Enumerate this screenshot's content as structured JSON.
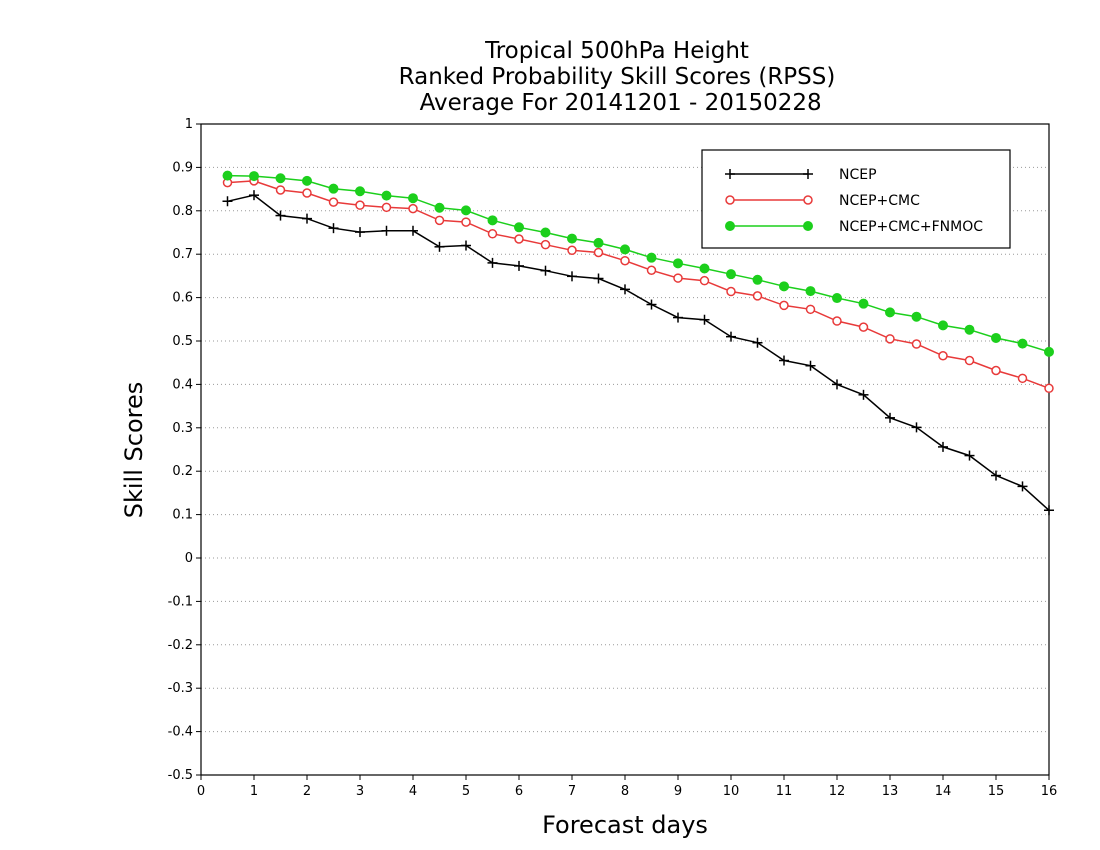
{
  "chart_data": {
    "type": "line",
    "title_lines": [
      "Tropical 500hPa Height",
      "Ranked Probability Skill Scores (RPSS)",
      " Average For 20141201 - 20150228"
    ],
    "xlabel": "Forecast days",
    "ylabel": "Skill Scores",
    "xlim": [
      0,
      16
    ],
    "ylim": [
      -0.5,
      1
    ],
    "x_ticks": [
      "0",
      "1",
      "2",
      "3",
      "4",
      "5",
      "6",
      "7",
      "8",
      "9",
      "10",
      "11",
      "12",
      "13",
      "14",
      "15",
      "16"
    ],
    "y_ticks": [
      "1",
      "0.9",
      "0.8",
      "0.7",
      "0.6",
      "0.5",
      "0.4",
      "0.3",
      "0.2",
      "0.1",
      "0",
      "-0.1",
      "-0.2",
      "-0.3",
      "-0.4",
      "-0.5"
    ],
    "grid": "horizontal dotted",
    "legend_position": "top-right",
    "x": [
      0.5,
      1,
      1.5,
      2,
      2.5,
      3,
      3.5,
      4,
      4.5,
      5,
      5.5,
      6,
      6.5,
      7,
      7.5,
      8,
      8.5,
      9,
      9.5,
      10,
      10.5,
      11,
      11.5,
      12,
      12.5,
      13,
      13.5,
      14,
      14.5,
      15,
      15.5,
      16
    ],
    "series": [
      {
        "name": "NCEP",
        "color": "#000000",
        "marker": "plus",
        "values": [
          0.822,
          0.836,
          0.789,
          0.782,
          0.76,
          0.751,
          0.754,
          0.754,
          0.717,
          0.72,
          0.68,
          0.673,
          0.662,
          0.649,
          0.644,
          0.619,
          0.584,
          0.554,
          0.549,
          0.51,
          0.496,
          0.455,
          0.443,
          0.4,
          0.376,
          0.323,
          0.301,
          0.256,
          0.236,
          0.19,
          0.165,
          0.11
        ]
      },
      {
        "name": "NCEP+CMC",
        "color": "#e83a3a",
        "marker": "open-circle",
        "values": [
          0.865,
          0.869,
          0.848,
          0.841,
          0.82,
          0.813,
          0.808,
          0.805,
          0.778,
          0.774,
          0.747,
          0.735,
          0.722,
          0.709,
          0.704,
          0.685,
          0.663,
          0.645,
          0.639,
          0.614,
          0.604,
          0.582,
          0.573,
          0.546,
          0.532,
          0.505,
          0.493,
          0.466,
          0.455,
          0.432,
          0.414,
          0.391
        ]
      },
      {
        "name": "NCEP+CMC+FNMOC",
        "color": "#1ccf1c",
        "marker": "filled-circle",
        "values": [
          0.881,
          0.88,
          0.875,
          0.869,
          0.851,
          0.845,
          0.835,
          0.829,
          0.807,
          0.801,
          0.778,
          0.762,
          0.75,
          0.736,
          0.726,
          0.711,
          0.692,
          0.679,
          0.667,
          0.654,
          0.641,
          0.626,
          0.615,
          0.599,
          0.586,
          0.566,
          0.556,
          0.536,
          0.526,
          0.507,
          0.494,
          0.475
        ]
      }
    ]
  }
}
